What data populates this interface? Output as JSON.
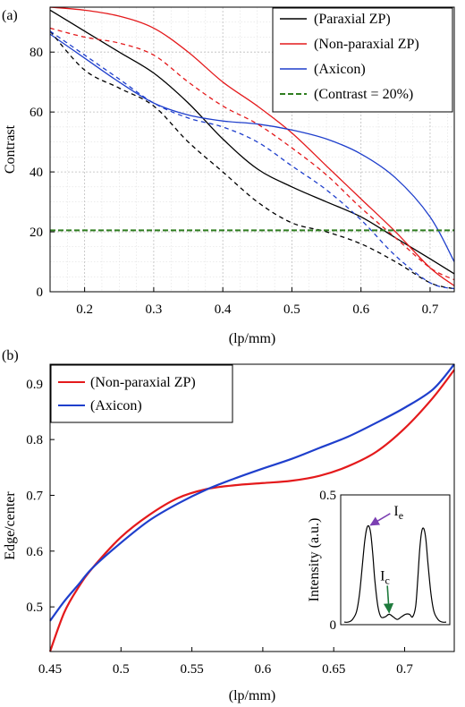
{
  "chart_data": [
    {
      "panel": "(a)",
      "type": "line",
      "xlabel": "(lp/mm)",
      "ylabel": "Contrast",
      "xlim": [
        0.15,
        0.735
      ],
      "ylim": [
        0,
        95
      ],
      "xticks": [
        0.2,
        0.3,
        0.4,
        0.5,
        0.6,
        0.7
      ],
      "yticks": [
        0,
        20,
        40,
        60,
        80
      ],
      "grid": true,
      "minor_grid": true,
      "legend_position": "top-right",
      "legend": [
        {
          "label": "(Paraxial ZP)",
          "color": "#000000",
          "dash": "solid"
        },
        {
          "label": "(Non-paraxial ZP)",
          "color": "#e41a1c",
          "dash": "solid"
        },
        {
          "label": "(Axicon)",
          "color": "#1f3fcc",
          "dash": "solid"
        },
        {
          "label": "(Contrast = 20%)",
          "color": "#2e7d1f",
          "dash": "dashed"
        }
      ],
      "series": [
        {
          "name": "(Paraxial ZP)",
          "color": "#000000",
          "dash": "solid",
          "x": [
            0.15,
            0.2,
            0.25,
            0.3,
            0.35,
            0.4,
            0.45,
            0.5,
            0.55,
            0.6,
            0.65,
            0.7,
            0.735
          ],
          "y": [
            94,
            87,
            80,
            73,
            63,
            51,
            41,
            35,
            30,
            25,
            18,
            11,
            6
          ]
        },
        {
          "name": "(Non-paraxial ZP)",
          "color": "#e41a1c",
          "dash": "solid",
          "x": [
            0.15,
            0.2,
            0.25,
            0.3,
            0.35,
            0.4,
            0.45,
            0.5,
            0.55,
            0.6,
            0.65,
            0.7,
            0.735
          ],
          "y": [
            95,
            94,
            92,
            88,
            80,
            70,
            62,
            53,
            42,
            31,
            20,
            8,
            2
          ]
        },
        {
          "name": "(Axicon)",
          "color": "#1f3fcc",
          "dash": "solid",
          "x": [
            0.15,
            0.2,
            0.25,
            0.3,
            0.35,
            0.4,
            0.45,
            0.5,
            0.55,
            0.6,
            0.65,
            0.7,
            0.735
          ],
          "y": [
            86,
            78,
            70,
            63,
            59,
            57,
            56,
            54,
            51,
            46,
            38,
            25,
            10
          ]
        },
        {
          "name": "",
          "color": "#000000",
          "dash": "dashed",
          "x": [
            0.15,
            0.2,
            0.25,
            0.3,
            0.35,
            0.4,
            0.45,
            0.5,
            0.55,
            0.6,
            0.65,
            0.7,
            0.735
          ],
          "y": [
            87,
            74,
            68,
            62,
            50,
            40,
            30,
            23,
            20,
            16,
            10,
            3,
            1
          ]
        },
        {
          "name": "",
          "color": "#e41a1c",
          "dash": "dashed",
          "x": [
            0.15,
            0.2,
            0.25,
            0.3,
            0.35,
            0.4,
            0.45,
            0.5,
            0.55,
            0.6,
            0.65,
            0.7,
            0.735
          ],
          "y": [
            88,
            85,
            83,
            79,
            70,
            62,
            56,
            48,
            39,
            28,
            18,
            8,
            4
          ]
        },
        {
          "name": "",
          "color": "#1f3fcc",
          "dash": "dashed",
          "x": [
            0.15,
            0.2,
            0.25,
            0.3,
            0.35,
            0.4,
            0.45,
            0.5,
            0.55,
            0.6,
            0.65,
            0.7,
            0.735
          ],
          "y": [
            87,
            79,
            71,
            63,
            58,
            55,
            50,
            42,
            34,
            24,
            12,
            3,
            1
          ]
        },
        {
          "name": "",
          "color": "#2e7d1f",
          "dash": "dashed",
          "x": [
            0.15,
            0.735
          ],
          "y": [
            20.5,
            20.5
          ]
        }
      ]
    },
    {
      "panel": "(b)",
      "type": "line",
      "xlabel": "(lp/mm)",
      "ylabel": "Edge/center",
      "xlim": [
        0.45,
        0.735
      ],
      "ylim": [
        0.42,
        0.935
      ],
      "xticks": [
        0.45,
        0.5,
        0.55,
        0.6,
        0.65,
        0.7
      ],
      "yticks": [
        0.5,
        0.6,
        0.7,
        0.8,
        0.9
      ],
      "grid": false,
      "legend_position": "top-left",
      "legend": [
        {
          "label": "(Non-paraxial ZP)",
          "color": "#e41a1c",
          "dash": "solid"
        },
        {
          "label": "(Axicon)",
          "color": "#1f3fcc",
          "dash": "solid"
        }
      ],
      "series": [
        {
          "name": "(Non-paraxial ZP)",
          "color": "#e41a1c",
          "dash": "solid",
          "x": [
            0.45,
            0.46,
            0.47,
            0.48,
            0.5,
            0.52,
            0.54,
            0.56,
            0.58,
            0.6,
            0.62,
            0.64,
            0.66,
            0.68,
            0.7,
            0.72,
            0.735
          ],
          "y": [
            0.42,
            0.49,
            0.535,
            0.57,
            0.625,
            0.665,
            0.695,
            0.711,
            0.718,
            0.722,
            0.726,
            0.735,
            0.752,
            0.778,
            0.82,
            0.875,
            0.925
          ]
        },
        {
          "name": "(Axicon)",
          "color": "#1f3fcc",
          "dash": "solid",
          "x": [
            0.45,
            0.46,
            0.47,
            0.48,
            0.5,
            0.52,
            0.54,
            0.56,
            0.58,
            0.6,
            0.62,
            0.64,
            0.66,
            0.68,
            0.7,
            0.72,
            0.735
          ],
          "y": [
            0.475,
            0.51,
            0.54,
            0.57,
            0.615,
            0.655,
            0.685,
            0.71,
            0.73,
            0.748,
            0.765,
            0.785,
            0.805,
            0.83,
            0.857,
            0.89,
            0.935
          ]
        }
      ],
      "inset": {
        "ylabel": "Intensity (a.u.)",
        "ylim": [
          0,
          0.5
        ],
        "yticks": [
          0,
          0.5
        ],
        "annotations": [
          {
            "label": "I",
            "sub": "e",
            "arrow_color": "#7b3fb2"
          },
          {
            "label": "I",
            "sub": "c",
            "arrow_color": "#1e7a3c"
          }
        ],
        "profile": {
          "x": [
            0,
            0.04,
            0.08,
            0.12,
            0.15,
            0.18,
            0.2,
            0.22,
            0.24,
            0.26,
            0.28,
            0.3,
            0.33,
            0.36,
            0.4,
            0.44,
            0.48,
            0.52,
            0.56,
            0.6,
            0.64,
            0.67,
            0.7,
            0.72,
            0.74,
            0.76,
            0.78,
            0.8,
            0.82,
            0.85,
            0.88,
            0.92,
            0.96,
            1.0
          ],
          "y": [
            0.01,
            0.01,
            0.02,
            0.05,
            0.12,
            0.24,
            0.32,
            0.37,
            0.38,
            0.35,
            0.27,
            0.17,
            0.07,
            0.03,
            0.03,
            0.04,
            0.03,
            0.02,
            0.03,
            0.04,
            0.04,
            0.03,
            0.07,
            0.17,
            0.29,
            0.36,
            0.37,
            0.33,
            0.24,
            0.12,
            0.05,
            0.02,
            0.01,
            0.01
          ]
        }
      }
    }
  ]
}
